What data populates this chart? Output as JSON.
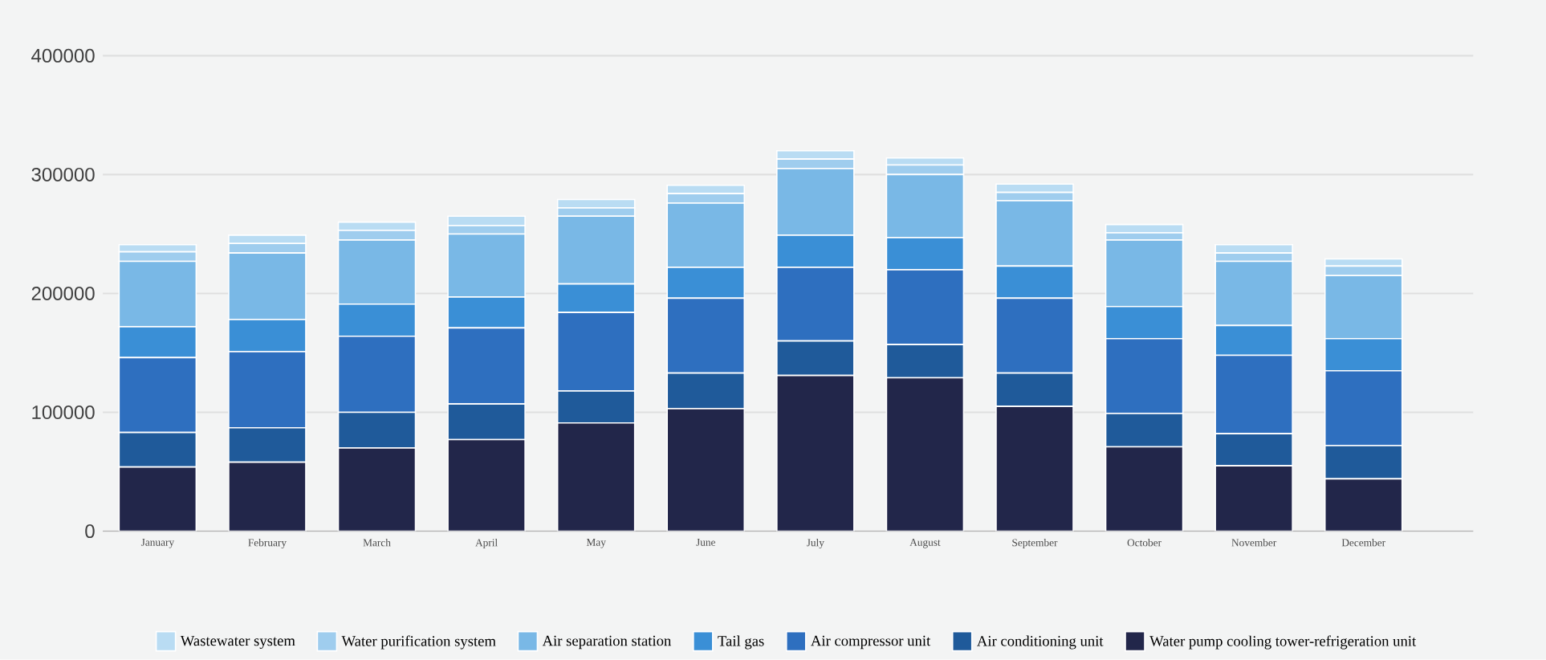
{
  "chart_data": {
    "type": "bar",
    "stacked": true,
    "grid": "y",
    "legend": "bottom",
    "categories": [
      "January",
      "February",
      "March",
      "April",
      "May",
      "June",
      "July",
      "August",
      "September",
      "October",
      "November",
      "December"
    ],
    "ylim": [
      0,
      400000
    ],
    "yticks": [
      0,
      100000,
      200000,
      300000,
      400000
    ],
    "series": [
      {
        "name": "Water pump cooling tower-refrigeration unit",
        "color": "#22264a",
        "values": [
          54000,
          58000,
          70000,
          77000,
          91000,
          103000,
          131000,
          129000,
          105000,
          71000,
          55000,
          44000
        ]
      },
      {
        "name": "Air conditioning unit",
        "color": "#1f5a9a",
        "values": [
          29000,
          29000,
          30000,
          30000,
          27000,
          30000,
          29000,
          28000,
          28000,
          28000,
          27000,
          28000
        ]
      },
      {
        "name": "Air compressor unit",
        "color": "#2e6fbf",
        "values": [
          63000,
          64000,
          64000,
          64000,
          66000,
          63000,
          62000,
          63000,
          63000,
          63000,
          66000,
          63000
        ]
      },
      {
        "name": "Tail gas",
        "color": "#3a8fd6",
        "values": [
          26000,
          27000,
          27000,
          26000,
          24000,
          26000,
          27000,
          27000,
          27000,
          27000,
          25000,
          27000
        ]
      },
      {
        "name": "Air separation station",
        "color": "#79b8e6",
        "values": [
          55000,
          56000,
          54000,
          53000,
          57000,
          54000,
          56000,
          53000,
          55000,
          56000,
          54000,
          53000
        ]
      },
      {
        "name": "Water purification system",
        "color": "#9fcdee",
        "values": [
          8000,
          8000,
          8000,
          7000,
          7000,
          8000,
          8000,
          8000,
          7000,
          6000,
          7000,
          8000
        ]
      },
      {
        "name": "Wastewater system",
        "color": "#b9dcf3",
        "values": [
          6000,
          7000,
          7000,
          8000,
          7000,
          7000,
          7000,
          6000,
          7000,
          7000,
          7000,
          6000
        ]
      }
    ]
  }
}
